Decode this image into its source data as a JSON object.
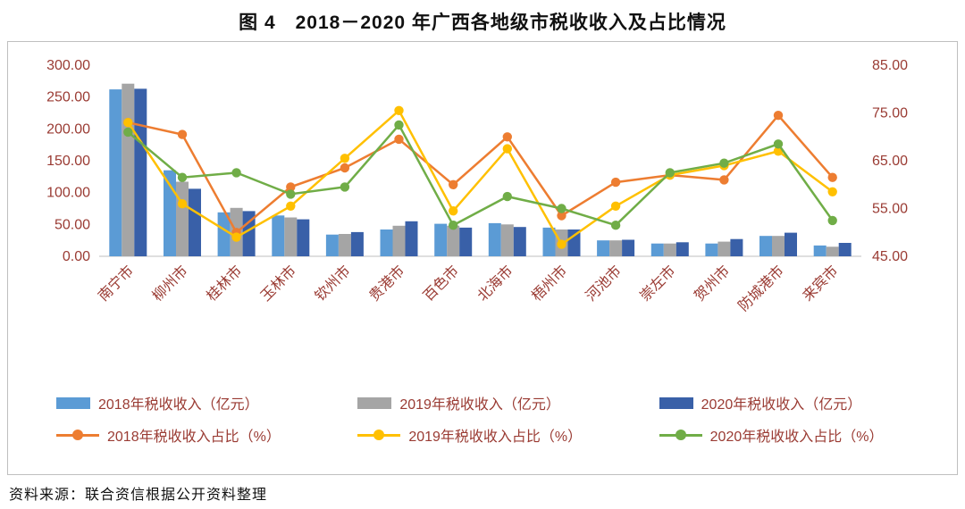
{
  "page": {
    "title": "图 4　2018－2020 年广西各地级市税收收入及占比情况",
    "source": "资料来源：联合资信根据公开资料整理"
  },
  "chart_data": {
    "type": "bar",
    "subtype": "combo-bar-line-dual-axis",
    "title": "图 4 2018－2020 年广西各地级市税收收入及占比情况",
    "categories": [
      "南宁市",
      "柳州市",
      "桂林市",
      "玉林市",
      "钦州市",
      "贵港市",
      "百色市",
      "北海市",
      "梧州市",
      "河池市",
      "崇左市",
      "贺州市",
      "防城港市",
      "来宾市"
    ],
    "left_axis": {
      "label": "税收收入（亿元）",
      "min": 0,
      "max": 300,
      "step": 50,
      "tick_format_decimals": 2
    },
    "right_axis": {
      "label": "税收收入占比（%）",
      "min": 45,
      "max": 85,
      "step": 10,
      "tick_format_decimals": 2
    },
    "grid": false,
    "legend_position": "bottom",
    "bar_series": [
      {
        "name": "2018年税收收入（亿元）",
        "color": "#5B9BD5",
        "axis": "left",
        "values": [
          262,
          135,
          69,
          64,
          34,
          42,
          51,
          52,
          45,
          25,
          20,
          20,
          32,
          17
        ]
      },
      {
        "name": "2019年税收收入（亿元）",
        "color": "#A5A5A5",
        "axis": "left",
        "values": [
          271,
          117,
          76,
          61,
          35,
          48,
          48,
          50,
          42,
          25,
          20,
          23,
          32,
          15
        ]
      },
      {
        "name": "2020年税收收入（亿元）",
        "color": "#3960A8",
        "axis": "left",
        "values": [
          263,
          106,
          71,
          58,
          38,
          55,
          45,
          46,
          42,
          26,
          22,
          27,
          37,
          21
        ]
      }
    ],
    "line_series": [
      {
        "name": "2018年税收收入占比（%）",
        "color": "#ED7D31",
        "axis": "right",
        "values": [
          73,
          70.5,
          50,
          59.5,
          63.5,
          69.5,
          60,
          70,
          53.5,
          60.5,
          62,
          61,
          74.5,
          61.5
        ]
      },
      {
        "name": "2019年税收收入占比（%）",
        "color": "#FFC000",
        "axis": "right",
        "values": [
          73,
          56,
          49,
          55.5,
          65.5,
          75.5,
          54.5,
          67.5,
          47.5,
          55.5,
          62,
          64,
          67,
          58.5
        ]
      },
      {
        "name": "2020年税收收入占比（%）",
        "color": "#70AD47",
        "axis": "right",
        "values": [
          71,
          61.5,
          62.5,
          58,
          59.5,
          72.5,
          51.5,
          57.5,
          55,
          51.5,
          62.5,
          64.5,
          68.5,
          52.5
        ]
      }
    ]
  }
}
